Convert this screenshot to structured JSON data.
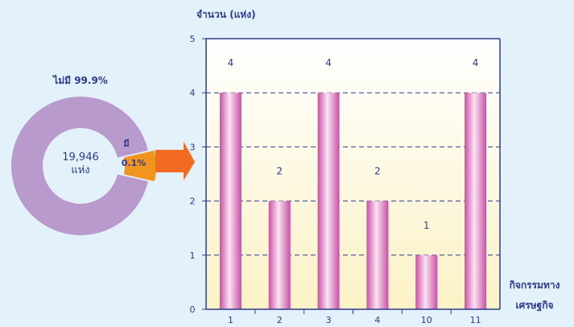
{
  "chart_data": [
    {
      "type": "pie",
      "variant": "donut",
      "slices": [
        {
          "label": "ไม่มี",
          "percent_label": "99.9%",
          "value": 99.9,
          "color": "#b89acc"
        },
        {
          "label": "มี",
          "percent_label": "0.1%",
          "value": 0.1,
          "color": "#f2951e"
        }
      ],
      "center_value": "19,946",
      "center_unit": "แห่ง",
      "arrow_color": "#f26b22"
    },
    {
      "type": "bar",
      "categories": [
        "1",
        "2",
        "3",
        "4",
        "10",
        "11"
      ],
      "values": [
        4,
        2,
        4,
        2,
        1,
        4
      ],
      "data_labels": [
        "4",
        "2",
        "4",
        "2",
        "1",
        "4"
      ],
      "ylabel": "จำนวน (แห่ง)",
      "xlabel_line1": "กิจกรรมทาง",
      "xlabel_line2": "เศรษฐกิจ",
      "ylim": [
        0,
        5
      ],
      "yticks": [
        "0",
        "1",
        "2",
        "3",
        "4",
        "5"
      ],
      "grid": "dashed horizontal",
      "axis_color": "#2e3a8c",
      "bar_color": "#c94fa6",
      "bar_highlight": "#fbe4f2",
      "plot_bg_top": "#ffffff",
      "plot_bg_bottom": "#fbf2c6"
    }
  ]
}
